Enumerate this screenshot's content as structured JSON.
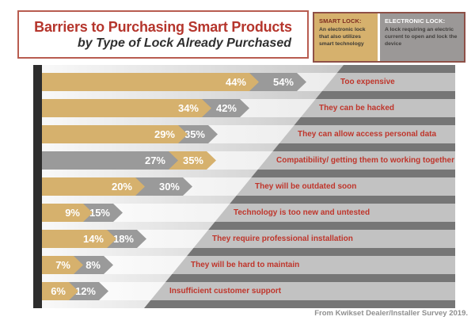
{
  "title": {
    "main": "Barriers to Purchasing Smart Products",
    "sub": "by Type of Lock Already Purchased"
  },
  "legend": {
    "smart": {
      "title": "SMART LOCK:",
      "desc": "An electronic lock that also utilizes smart technology"
    },
    "electronic": {
      "title": "ELECTRONIC LOCK:",
      "desc": "A lock requiring an electric current to open and lock the device"
    }
  },
  "source": "From Kwikset Dealer/Installer Survey 2019.",
  "colors": {
    "smart_lock": "#d6b16d",
    "electronic_lock": "#9a9a9a",
    "label_red": "#bf352b",
    "title_red": "#b5352c",
    "right_panel_track": "#c2c2c2",
    "right_panel_gap": "#767676"
  },
  "chart_data": {
    "type": "bar",
    "orientation": "horizontal",
    "title": "Barriers to Purchasing Smart Products by Type of Lock Already Purchased",
    "value_suffix": "%",
    "categories": [
      "Too expensive",
      "They can be hacked",
      "They can allow access personal data",
      "Compatibility/ getting them to working together",
      "They will be outdated soon",
      "Technology is too new and untested",
      "They require professional installation",
      "They will be hard to maintain",
      "Insufficient customer support"
    ],
    "series": [
      {
        "name": "Smart Lock",
        "color": "#d6b16d",
        "values": [
          44,
          34,
          29,
          35,
          20,
          9,
          14,
          7,
          6
        ]
      },
      {
        "name": "Electronic Lock",
        "color": "#9a9a9a",
        "values": [
          54,
          42,
          35,
          27,
          30,
          15,
          18,
          8,
          12
        ]
      }
    ],
    "legend_position": "top-right",
    "grid": false,
    "xlim": [
      0,
      60
    ]
  }
}
